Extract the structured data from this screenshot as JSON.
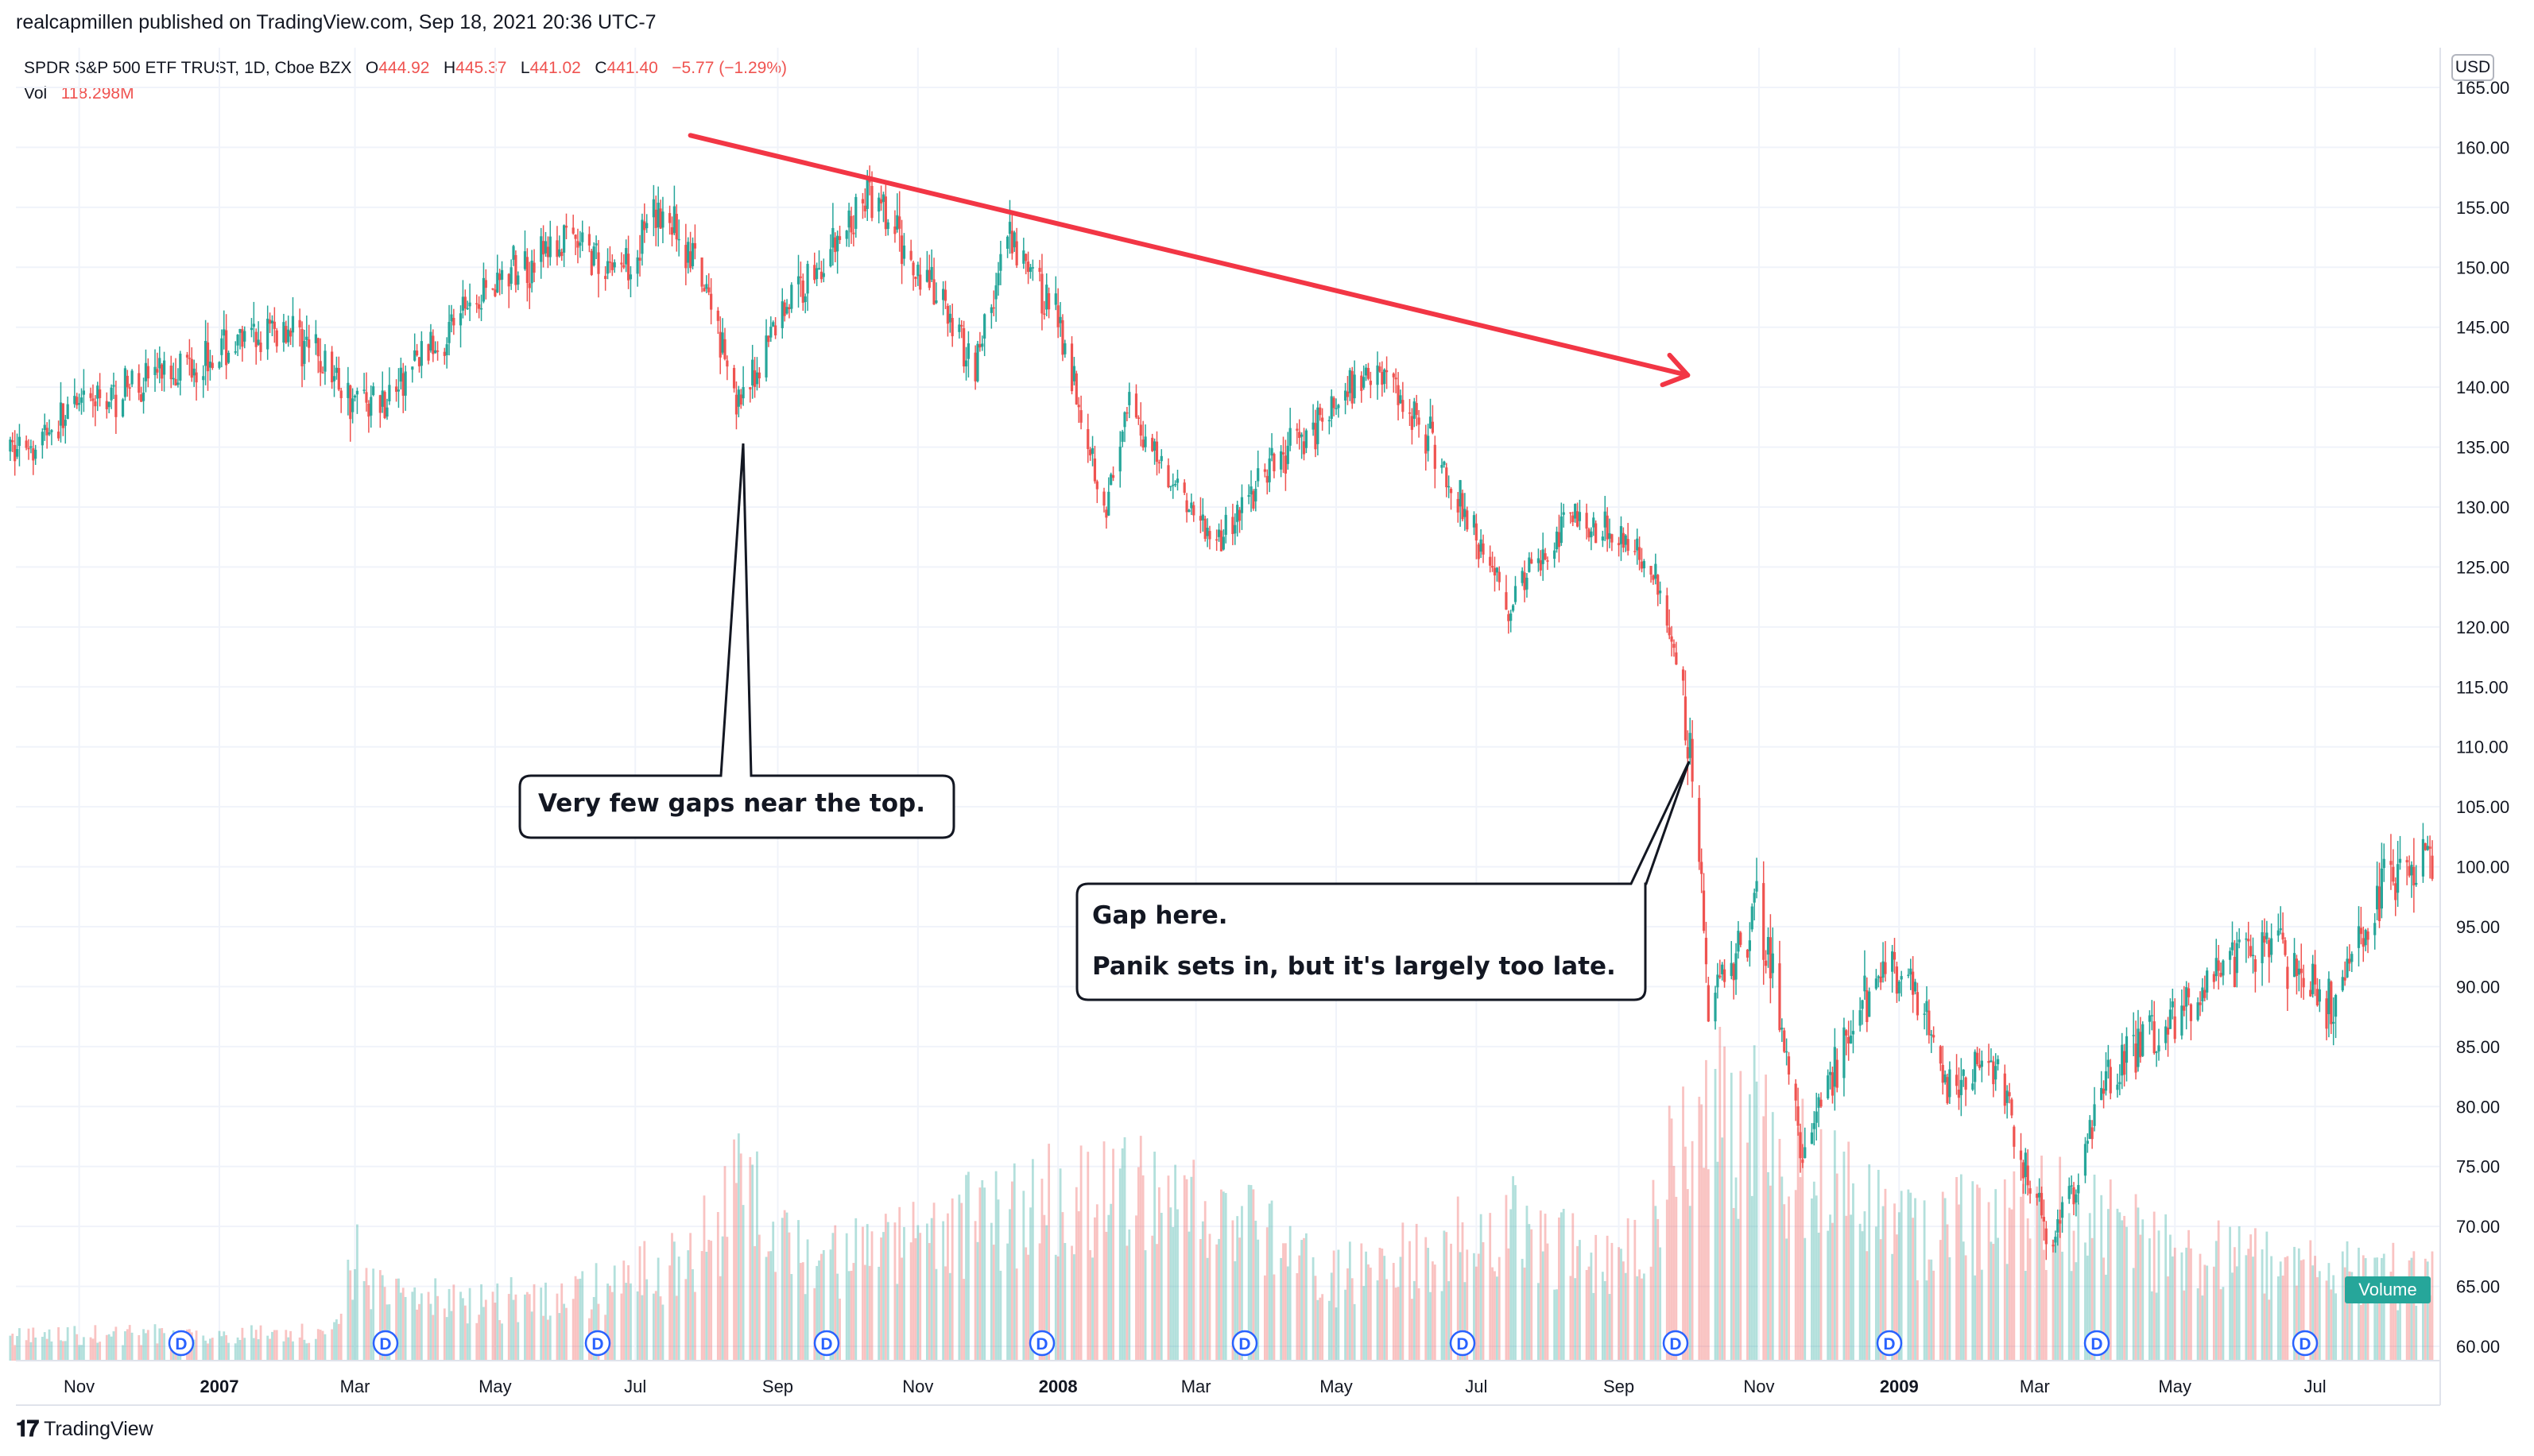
{
  "header": {
    "published_by": "realcapmillen published on TradingView.com, Sep 18, 2021 20:36 UTC-7"
  },
  "legend": {
    "symbol": "SPDR S&P 500 ETF TRUST, 1D, Cboe BZX",
    "open_label": "O",
    "open": "444.92",
    "high_label": "H",
    "high": "445.37",
    "low_label": "L",
    "low": "441.02",
    "close_label": "C",
    "close": "441.40",
    "change": "−5.77 (−1.29%)",
    "vol_label": "Vol",
    "vol_value": "118.298M"
  },
  "price_scale": {
    "currency": "USD",
    "ticks": [
      "165.00",
      "160.00",
      "155.00",
      "150.00",
      "145.00",
      "140.00",
      "135.00",
      "130.00",
      "125.00",
      "120.00",
      "115.00",
      "110.00",
      "105.00",
      "100.00",
      "95.00",
      "90.00",
      "85.00",
      "80.00",
      "75.00",
      "70.00",
      "65.00",
      "60.00"
    ]
  },
  "time_scale": {
    "labels": [
      {
        "text": "Nov",
        "year": false
      },
      {
        "text": "2007",
        "year": true
      },
      {
        "text": "Mar",
        "year": false
      },
      {
        "text": "May",
        "year": false
      },
      {
        "text": "Jul",
        "year": false
      },
      {
        "text": "Sep",
        "year": false
      },
      {
        "text": "Nov",
        "year": false
      },
      {
        "text": "2008",
        "year": true
      },
      {
        "text": "Mar",
        "year": false
      },
      {
        "text": "May",
        "year": false
      },
      {
        "text": "Jul",
        "year": false
      },
      {
        "text": "Sep",
        "year": false
      },
      {
        "text": "Nov",
        "year": false
      },
      {
        "text": "2009",
        "year": true
      },
      {
        "text": "Mar",
        "year": false
      },
      {
        "text": "May",
        "year": false
      },
      {
        "text": "Jul",
        "year": false
      }
    ]
  },
  "dividend_marker": "D",
  "volume_badge": "Volume",
  "annotations": {
    "callout1": "Very few gaps near the top.",
    "callout2_line1": "Gap here.",
    "callout2_line2": "Panik sets in, but it's largely too late."
  },
  "footer": {
    "brand": "TradingView"
  },
  "colors": {
    "up": "#26a69a",
    "down": "#ef5350",
    "trendline": "#f23645",
    "grid": "#f0f3fa"
  },
  "chart_data": {
    "type": "candlestick",
    "y_range": [
      58,
      166
    ],
    "scale": "linear",
    "grid": true,
    "trendline": {
      "from": {
        "x": "2007-07-25",
        "y": 161
      },
      "to": {
        "x": "2008-10-01",
        "y": 141
      }
    },
    "price_path": [
      {
        "date": "2006-10-01",
        "close": 134.5
      },
      {
        "date": "2006-11-01",
        "close": 138
      },
      {
        "date": "2006-12-01",
        "close": 141
      },
      {
        "date": "2007-01-01",
        "close": 143
      },
      {
        "date": "2007-02-01",
        "close": 145
      },
      {
        "date": "2007-02-28",
        "close": 139
      },
      {
        "date": "2007-03-15",
        "close": 139
      },
      {
        "date": "2007-04-01",
        "close": 143
      },
      {
        "date": "2007-05-01",
        "close": 149
      },
      {
        "date": "2007-06-01",
        "close": 152
      },
      {
        "date": "2007-06-25",
        "close": 150
      },
      {
        "date": "2007-07-15",
        "close": 155
      },
      {
        "date": "2007-08-05",
        "close": 146
      },
      {
        "date": "2007-08-16",
        "close": 138
      },
      {
        "date": "2007-09-01",
        "close": 146
      },
      {
        "date": "2007-10-01",
        "close": 153
      },
      {
        "date": "2007-10-10",
        "close": 156
      },
      {
        "date": "2007-11-01",
        "close": 150
      },
      {
        "date": "2007-11-26",
        "close": 142
      },
      {
        "date": "2007-12-10",
        "close": 152
      },
      {
        "date": "2008-01-01",
        "close": 146
      },
      {
        "date": "2008-01-22",
        "close": 130
      },
      {
        "date": "2008-02-01",
        "close": 138
      },
      {
        "date": "2008-03-10",
        "close": 127
      },
      {
        "date": "2008-04-01",
        "close": 133
      },
      {
        "date": "2008-05-19",
        "close": 142
      },
      {
        "date": "2008-06-10",
        "close": 136
      },
      {
        "date": "2008-07-15",
        "close": 122
      },
      {
        "date": "2008-08-10",
        "close": 129
      },
      {
        "date": "2008-09-01",
        "close": 128
      },
      {
        "date": "2008-09-19",
        "close": 124
      },
      {
        "date": "2008-10-03",
        "close": 110
      },
      {
        "date": "2008-10-10",
        "close": 88
      },
      {
        "date": "2008-11-01",
        "close": 97
      },
      {
        "date": "2008-11-20",
        "close": 76
      },
      {
        "date": "2008-12-15",
        "close": 88
      },
      {
        "date": "2009-01-05",
        "close": 93
      },
      {
        "date": "2009-01-20",
        "close": 81
      },
      {
        "date": "2009-02-10",
        "close": 84
      },
      {
        "date": "2009-03-09",
        "close": 68
      },
      {
        "date": "2009-04-01",
        "close": 82
      },
      {
        "date": "2009-05-01",
        "close": 88
      },
      {
        "date": "2009-06-10",
        "close": 94
      },
      {
        "date": "2009-07-08",
        "close": 88
      },
      {
        "date": "2009-08-01",
        "close": 99
      },
      {
        "date": "2009-08-21",
        "close": 101
      }
    ],
    "volume_range": [
      0,
      660
    ],
    "volume_path": [
      {
        "date": "2006-10-01",
        "volume": 60
      },
      {
        "date": "2007-02-20",
        "volume": 70
      },
      {
        "date": "2007-02-28",
        "volume": 250
      },
      {
        "date": "2007-03-20",
        "volume": 150
      },
      {
        "date": "2007-06-01",
        "volume": 150
      },
      {
        "date": "2007-07-25",
        "volume": 250
      },
      {
        "date": "2007-08-16",
        "volume": 420
      },
      {
        "date": "2007-09-15",
        "volume": 220
      },
      {
        "date": "2007-11-15",
        "volume": 330
      },
      {
        "date": "2008-01-22",
        "volume": 420
      },
      {
        "date": "2008-03-15",
        "volume": 340
      },
      {
        "date": "2008-05-01",
        "volume": 200
      },
      {
        "date": "2008-07-15",
        "volume": 330
      },
      {
        "date": "2008-09-01",
        "volume": 220
      },
      {
        "date": "2008-10-10",
        "volume": 640
      },
      {
        "date": "2008-11-20",
        "volume": 480
      },
      {
        "date": "2009-01-01",
        "volume": 300
      },
      {
        "date": "2009-03-10",
        "volume": 380
      },
      {
        "date": "2009-05-01",
        "volume": 260
      },
      {
        "date": "2009-08-21",
        "volume": 200
      }
    ]
  }
}
